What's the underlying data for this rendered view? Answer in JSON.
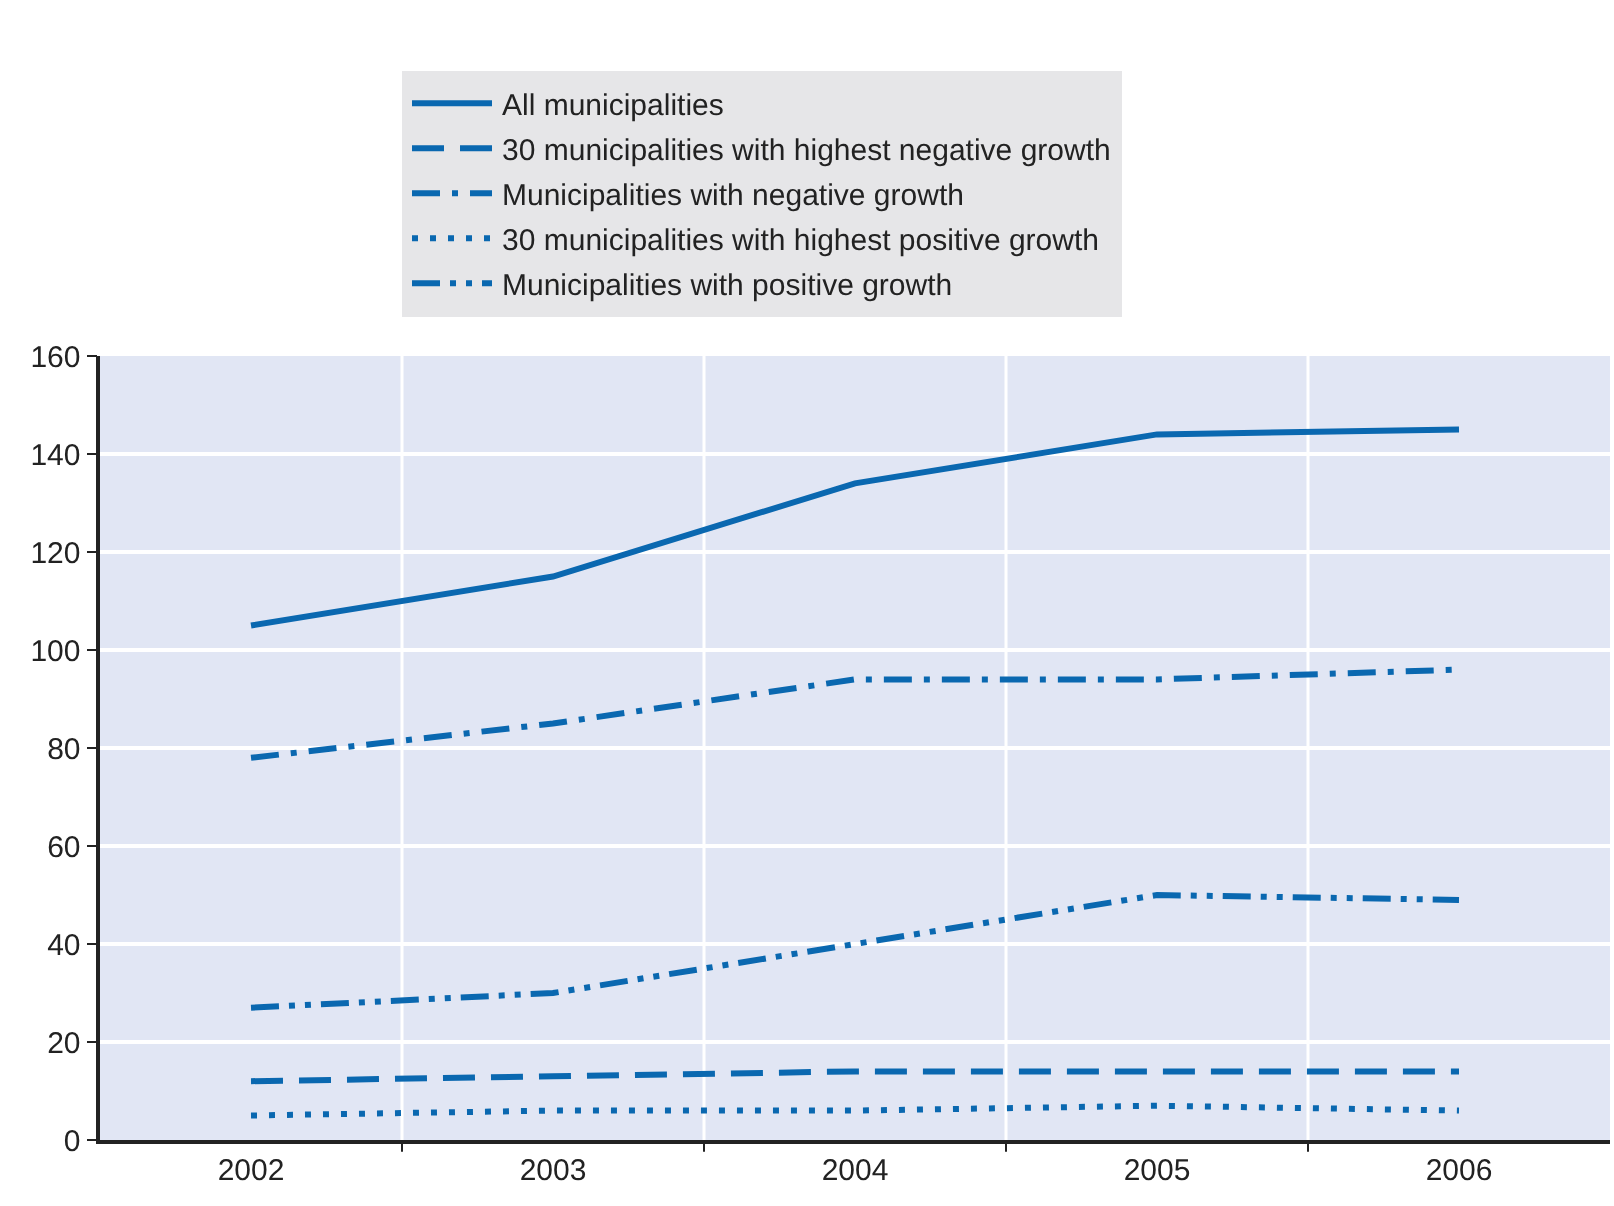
{
  "chart_data": {
    "type": "line",
    "categories": [
      "2002",
      "2003",
      "2004",
      "2005",
      "2006"
    ],
    "series": [
      {
        "name": "All municipalities",
        "color": "#0a68b0",
        "line_style": "solid",
        "values": [
          105,
          115,
          134,
          144,
          145
        ]
      },
      {
        "name": "30 municipalities with highest negative growth",
        "color": "#0a68b0",
        "line_style": "dashed",
        "values": [
          12,
          13,
          14,
          14,
          14
        ]
      },
      {
        "name": "Municipalities with negative growth",
        "color": "#0a68b0",
        "line_style": "dashdot",
        "values": [
          78,
          85,
          94,
          94,
          96
        ]
      },
      {
        "name": "30 municipalities with highest positive growth",
        "color": "#0a68b0",
        "line_style": "dotted",
        "values": [
          5,
          6,
          6,
          7,
          6
        ]
      },
      {
        "name": "Municipalities with positive growth",
        "color": "#0a68b0",
        "line_style": "dashdotdot",
        "values": [
          27,
          30,
          40,
          50,
          49
        ]
      }
    ],
    "ylim": [
      0,
      160
    ],
    "yticks": [
      0,
      20,
      40,
      60,
      80,
      100,
      120,
      140,
      160
    ],
    "grid": true,
    "legend": "top",
    "marker": "none"
  }
}
